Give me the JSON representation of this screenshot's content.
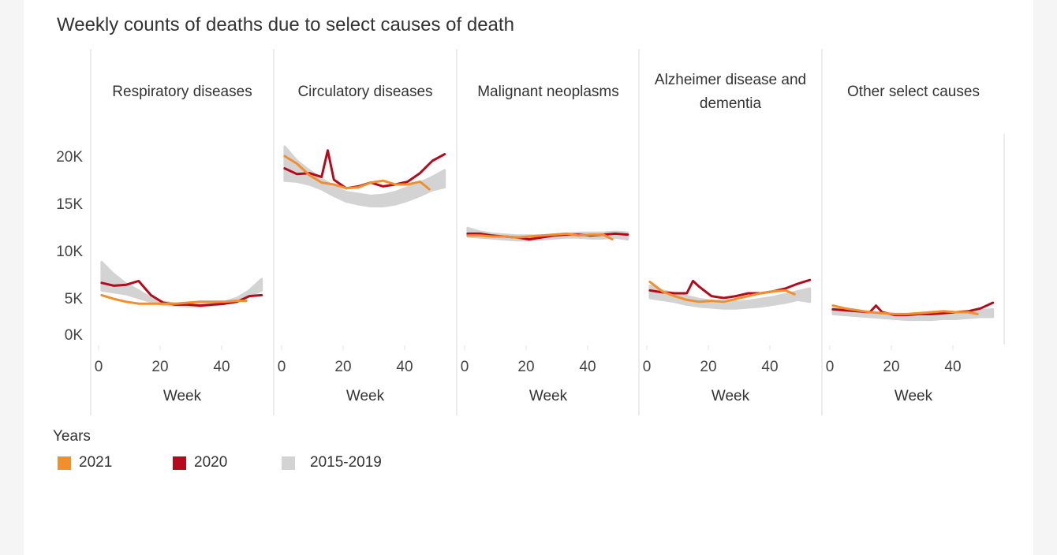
{
  "colors": {
    "y2021": "#f28e2b",
    "y2020": "#b60a1c",
    "baseline": "#d3d3d3"
  },
  "chart_data": {
    "type": "line",
    "title": "Weekly counts of deaths due to select causes of death",
    "xlabel": "Week",
    "ylabel": "",
    "xlim": [
      0,
      55
    ],
    "ylim": [
      0,
      20000
    ],
    "x_ticks": [
      0,
      20,
      40
    ],
    "y_ticks": [
      {
        "v": 0,
        "label": "0K"
      },
      {
        "v": 5000,
        "label": "5K"
      },
      {
        "v": 10000,
        "label": "10K"
      },
      {
        "v": 15000,
        "label": "15K"
      },
      {
        "v": 20000,
        "label": "20K"
      }
    ],
    "legend": {
      "title": "Years",
      "placement": "bottom-left",
      "entries": [
        "2021",
        "2020",
        "2015-2019"
      ]
    },
    "grid": false,
    "units": "thousands of deaths",
    "panels": [
      {
        "name": "Respiratory diseases",
        "y2020": {
          "x": [
            1,
            5,
            9,
            13,
            17,
            21,
            25,
            29,
            33,
            37,
            41,
            45,
            49,
            53
          ],
          "y": [
            6.6,
            6.3,
            6.4,
            6.8,
            5.3,
            4.5,
            4.3,
            4.3,
            4.2,
            4.3,
            4.4,
            4.6,
            5.2,
            5.3
          ]
        },
        "y2021": {
          "x": [
            1,
            5,
            9,
            13,
            17,
            21,
            25,
            29,
            33,
            37,
            41,
            45,
            48
          ],
          "y": [
            5.3,
            4.9,
            4.6,
            4.4,
            4.4,
            4.4,
            4.4,
            4.5,
            4.6,
            4.6,
            4.6,
            4.7,
            4.7
          ]
        },
        "baseline": {
          "x": [
            1,
            5,
            9,
            13,
            17,
            21,
            25,
            29,
            33,
            37,
            41,
            45,
            49,
            53
          ],
          "low": [
            5.8,
            5.6,
            5.4,
            5.0,
            4.6,
            4.3,
            4.2,
            4.1,
            4.1,
            4.2,
            4.4,
            4.7,
            5.2,
            5.8
          ],
          "high": [
            8.8,
            7.5,
            6.5,
            5.8,
            5.0,
            4.6,
            4.4,
            4.3,
            4.3,
            4.4,
            4.6,
            5.0,
            5.8,
            7.0
          ]
        }
      },
      {
        "name": "Circulatory diseases",
        "y2020": {
          "x": [
            1,
            5,
            9,
            13,
            15,
            17,
            21,
            25,
            29,
            33,
            37,
            41,
            45,
            49,
            53
          ],
          "y": [
            18.7,
            18.1,
            18.2,
            17.8,
            20.6,
            17.5,
            16.6,
            16.8,
            17.2,
            16.8,
            17.0,
            17.3,
            18.2,
            19.5,
            20.2
          ]
        },
        "y2021": {
          "x": [
            1,
            5,
            9,
            13,
            17,
            21,
            25,
            29,
            33,
            37,
            41,
            45,
            48
          ],
          "y": [
            20.0,
            19.2,
            18.0,
            17.2,
            17.0,
            16.6,
            16.7,
            17.2,
            17.4,
            17.0,
            17.0,
            17.3,
            16.5
          ]
        },
        "baseline": {
          "x": [
            1,
            5,
            9,
            13,
            17,
            21,
            25,
            29,
            33,
            37,
            41,
            45,
            49,
            53
          ],
          "low": [
            17.4,
            17.3,
            17.0,
            16.5,
            15.8,
            15.2,
            14.9,
            14.7,
            14.7,
            14.9,
            15.3,
            15.8,
            16.4,
            16.7
          ],
          "high": [
            21.0,
            19.5,
            18.5,
            17.6,
            16.8,
            16.2,
            16.0,
            15.8,
            15.9,
            16.2,
            16.7,
            17.2,
            17.8,
            18.5
          ]
        }
      },
      {
        "name": "Malignant neoplasms",
        "y2020": {
          "x": [
            1,
            5,
            9,
            13,
            17,
            21,
            25,
            29,
            33,
            37,
            41,
            45,
            49,
            53
          ],
          "y": [
            11.8,
            11.8,
            11.6,
            11.5,
            11.4,
            11.2,
            11.4,
            11.6,
            11.7,
            11.7,
            11.6,
            11.7,
            11.8,
            11.7
          ]
        },
        "y2021": {
          "x": [
            1,
            5,
            9,
            13,
            17,
            21,
            25,
            29,
            33,
            37,
            41,
            45,
            48
          ],
          "y": [
            11.6,
            11.6,
            11.5,
            11.5,
            11.4,
            11.5,
            11.6,
            11.7,
            11.8,
            11.6,
            11.7,
            11.7,
            11.2
          ]
        },
        "baseline": {
          "x": [
            1,
            5,
            9,
            13,
            17,
            21,
            25,
            29,
            33,
            37,
            41,
            45,
            49,
            53
          ],
          "low": [
            11.5,
            11.4,
            11.3,
            11.2,
            11.1,
            11.1,
            11.2,
            11.3,
            11.4,
            11.4,
            11.3,
            11.3,
            11.4,
            11.2
          ],
          "high": [
            12.4,
            12.0,
            11.8,
            11.7,
            11.6,
            11.6,
            11.6,
            11.7,
            11.8,
            11.9,
            11.9,
            11.9,
            12.0,
            11.9
          ]
        }
      },
      {
        "name": "Alzheimer disease and dementia",
        "y2020": {
          "x": [
            1,
            5,
            9,
            13,
            15,
            17,
            21,
            25,
            29,
            33,
            37,
            41,
            45,
            49,
            53
          ],
          "y": [
            5.8,
            5.6,
            5.5,
            5.5,
            6.8,
            6.2,
            5.2,
            5.0,
            5.2,
            5.5,
            5.5,
            5.7,
            6.0,
            6.5,
            6.9
          ]
        },
        "y2021": {
          "x": [
            1,
            5,
            9,
            13,
            17,
            21,
            25,
            29,
            33,
            37,
            41,
            45,
            48
          ],
          "y": [
            6.7,
            5.7,
            5.2,
            4.8,
            4.6,
            4.7,
            4.6,
            4.9,
            5.2,
            5.5,
            5.7,
            5.8,
            5.4
          ]
        },
        "baseline": {
          "x": [
            1,
            5,
            9,
            13,
            17,
            21,
            25,
            29,
            33,
            37,
            41,
            45,
            49,
            53
          ],
          "low": [
            5.0,
            4.8,
            4.6,
            4.3,
            4.1,
            4.0,
            3.9,
            3.9,
            4.0,
            4.1,
            4.3,
            4.5,
            4.8,
            4.6
          ],
          "high": [
            6.3,
            5.8,
            5.5,
            5.2,
            4.9,
            4.7,
            4.6,
            4.6,
            4.7,
            4.9,
            5.1,
            5.4,
            5.7,
            6.0
          ]
        }
      },
      {
        "name": "Other select causes",
        "y2020": {
          "x": [
            1,
            5,
            9,
            13,
            15,
            17,
            21,
            25,
            29,
            33,
            37,
            41,
            45,
            49,
            53
          ],
          "y": [
            3.8,
            3.7,
            3.6,
            3.5,
            4.2,
            3.5,
            3.2,
            3.2,
            3.3,
            3.3,
            3.4,
            3.5,
            3.6,
            3.9,
            4.5
          ]
        },
        "y2021": {
          "x": [
            1,
            5,
            9,
            13,
            17,
            21,
            25,
            29,
            33,
            37,
            41,
            45,
            48
          ],
          "y": [
            4.2,
            3.9,
            3.7,
            3.5,
            3.4,
            3.3,
            3.3,
            3.4,
            3.5,
            3.6,
            3.5,
            3.5,
            3.3
          ]
        },
        "baseline": {
          "x": [
            1,
            5,
            9,
            13,
            17,
            21,
            25,
            29,
            33,
            37,
            41,
            45,
            49,
            53
          ],
          "low": [
            3.3,
            3.2,
            3.1,
            3.0,
            2.9,
            2.8,
            2.7,
            2.7,
            2.7,
            2.8,
            2.8,
            2.9,
            3.0,
            3.0
          ],
          "high": [
            3.9,
            3.7,
            3.6,
            3.5,
            3.4,
            3.3,
            3.2,
            3.2,
            3.3,
            3.3,
            3.4,
            3.5,
            3.7,
            3.8
          ]
        }
      }
    ]
  }
}
